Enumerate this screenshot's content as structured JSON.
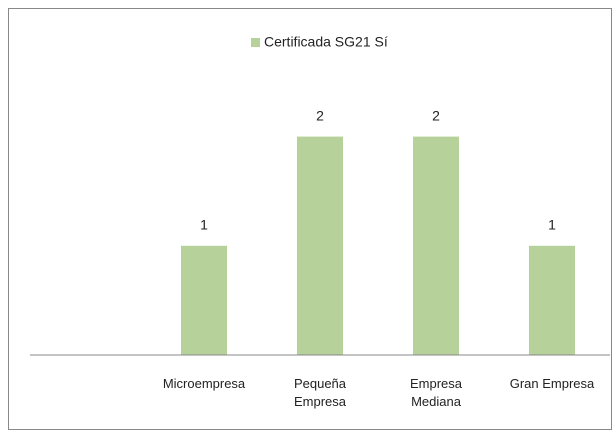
{
  "chart_data": {
    "type": "bar",
    "categories": [
      null,
      "Microempresa",
      "Pequeña Empresa",
      "Empresa Mediana",
      "Gran Empresa"
    ],
    "series": [
      {
        "name": "Certificada SG21 Sí",
        "color": "#b7d19a",
        "values": [
          null,
          1,
          2,
          2,
          1
        ]
      }
    ],
    "ylim": [
      0,
      2.5
    ],
    "legend": "top"
  }
}
